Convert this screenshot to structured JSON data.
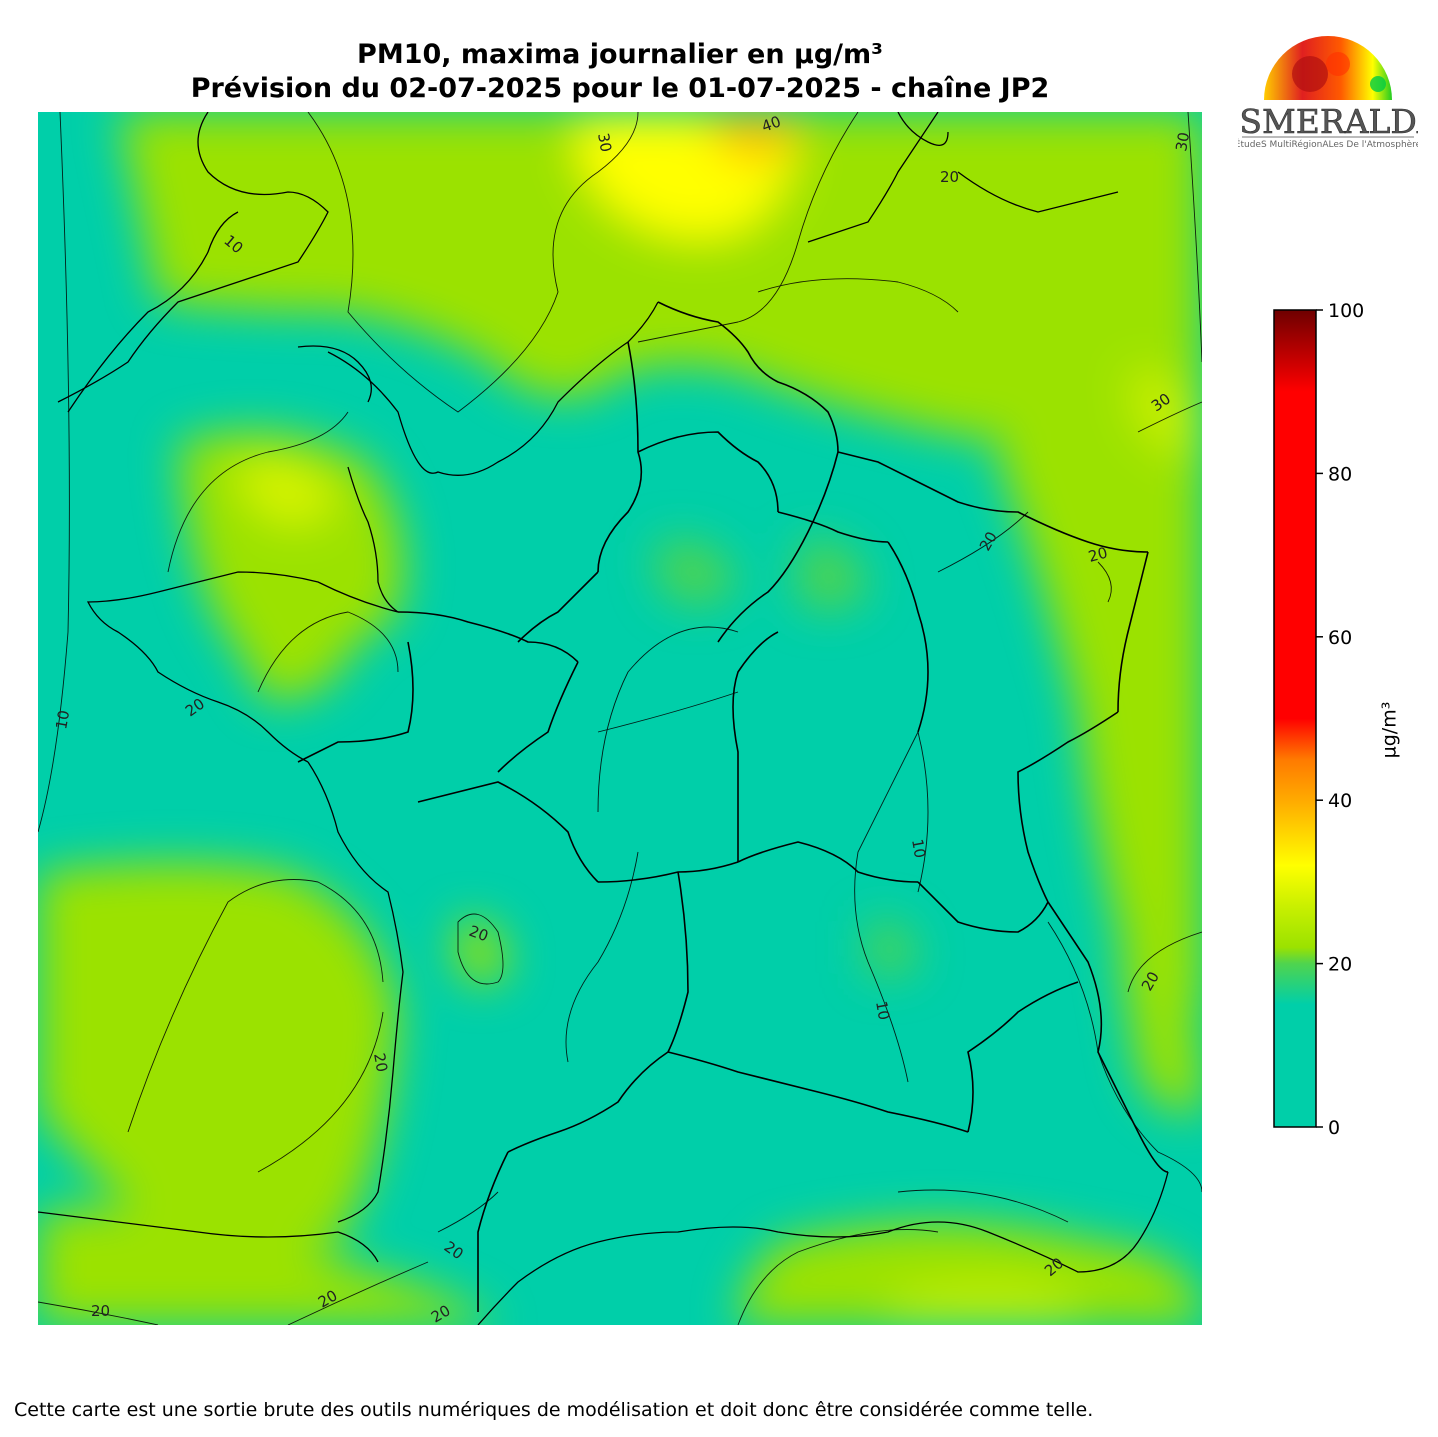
{
  "title": {
    "line1": "PM10, maxima journalier en µg/m³",
    "line2": "Prévision du 02-07-2025 pour le 01-07-2025 - chaîne JP2"
  },
  "logo": {
    "name": "ESMERALDA",
    "subtitle": "ÉtudeS MultiRégionALes De l'Atmosphère"
  },
  "colorbar": {
    "unit": "µg/m³",
    "min": 0,
    "max": 100,
    "ticks": [
      "0",
      "20",
      "40",
      "60",
      "80",
      "100"
    ],
    "stops": [
      {
        "value": 0,
        "color": "#00cfa9"
      },
      {
        "value": 15,
        "color": "#00cfa9"
      },
      {
        "value": 20,
        "color": "#4fd44e"
      },
      {
        "value": 22,
        "color": "#9be200"
      },
      {
        "value": 27,
        "color": "#c9f000"
      },
      {
        "value": 32,
        "color": "#ffff00"
      },
      {
        "value": 40,
        "color": "#ffaa00"
      },
      {
        "value": 45,
        "color": "#ff7a00"
      },
      {
        "value": 50,
        "color": "#ff0000"
      },
      {
        "value": 90,
        "color": "#ff0000"
      },
      {
        "value": 100,
        "color": "#6e0000"
      }
    ]
  },
  "map": {
    "background_color": "#00cfa9",
    "contour_labels": [
      "10",
      "10",
      "10",
      "10",
      "20",
      "20",
      "20",
      "20",
      "20",
      "20",
      "20",
      "20",
      "20",
      "20",
      "20",
      "20",
      "30",
      "30",
      "30",
      "40"
    ]
  },
  "disclaimer": "Cette carte est une sortie brute des outils numériques de modélisation et doit donc être considérée comme telle."
}
